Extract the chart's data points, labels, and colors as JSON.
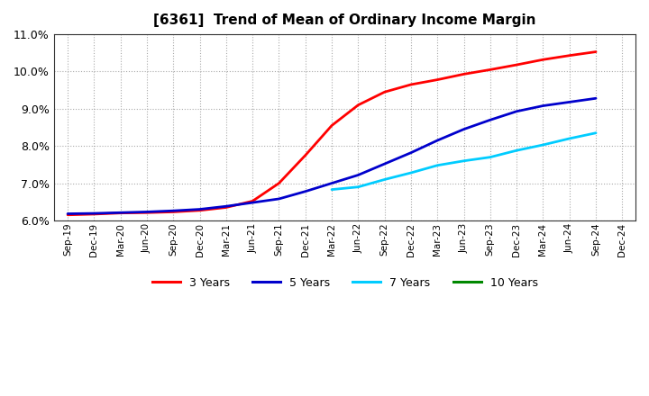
{
  "title": "[6361]  Trend of Mean of Ordinary Income Margin",
  "ylim": [
    0.06,
    0.11
  ],
  "yticks": [
    0.06,
    0.07,
    0.08,
    0.09,
    0.1,
    0.11
  ],
  "grid_color": "#aaaaaa",
  "x_labels": [
    "Sep-19",
    "Dec-19",
    "Mar-20",
    "Jun-20",
    "Sep-20",
    "Dec-20",
    "Mar-21",
    "Jun-21",
    "Sep-21",
    "Dec-21",
    "Mar-22",
    "Jun-22",
    "Sep-22",
    "Dec-22",
    "Mar-23",
    "Jun-23",
    "Sep-23",
    "Dec-23",
    "Mar-24",
    "Jun-24",
    "Sep-24",
    "Dec-24"
  ],
  "series": [
    {
      "name": "3 Years",
      "color": "#ff0000",
      "values": [
        0.0615,
        0.0617,
        0.062,
        0.0621,
        0.0623,
        0.0627,
        0.0635,
        0.0652,
        0.07,
        0.0775,
        0.0855,
        0.091,
        0.0945,
        0.0965,
        0.0978,
        0.0993,
        0.1005,
        0.1018,
        0.1032,
        0.1043,
        0.1053,
        null
      ]
    },
    {
      "name": "5 Years",
      "color": "#0000cc",
      "values": [
        0.0618,
        0.0619,
        0.0621,
        0.0623,
        0.0626,
        0.063,
        0.0638,
        0.0648,
        0.0658,
        0.0678,
        0.07,
        0.0722,
        0.0752,
        0.0782,
        0.0815,
        0.0845,
        0.087,
        0.0893,
        0.0908,
        0.0918,
        0.0928,
        null
      ]
    },
    {
      "name": "7 Years",
      "color": "#00ccff",
      "values": [
        null,
        null,
        null,
        null,
        null,
        null,
        null,
        null,
        null,
        null,
        0.0683,
        0.069,
        0.071,
        0.0728,
        0.0748,
        0.076,
        0.077,
        0.0788,
        0.0803,
        0.082,
        0.0835,
        null
      ]
    },
    {
      "name": "10 Years",
      "color": "#008800",
      "values": [
        null,
        null,
        null,
        null,
        null,
        null,
        null,
        null,
        null,
        null,
        null,
        null,
        null,
        null,
        null,
        null,
        null,
        null,
        null,
        null,
        null,
        null
      ]
    }
  ],
  "legend_labels": [
    "3 Years",
    "5 Years",
    "7 Years",
    "10 Years"
  ],
  "legend_colors": [
    "#ff0000",
    "#0000cc",
    "#00ccff",
    "#008800"
  ]
}
